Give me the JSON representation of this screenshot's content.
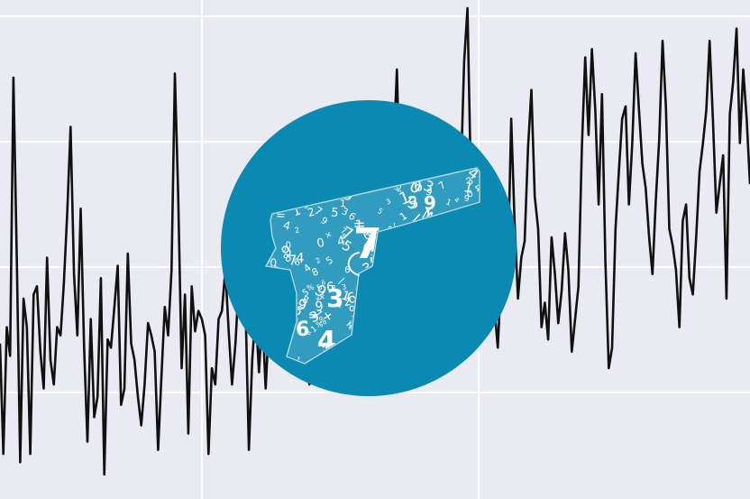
{
  "chart_data": {
    "type": "line",
    "grid": true,
    "series": [
      {
        "values": [
          0.16,
          -0.11,
          0.2,
          0.13,
          0.81,
          0.36,
          -0.13,
          0.27,
          0.2,
          -0.11,
          0.28,
          0.3,
          0.14,
          0.05,
          0.37,
          0.12,
          0.06,
          0.2,
          0.18,
          0.31,
          0.48,
          0.69,
          0.33,
          0.18,
          0.49,
          0.15,
          -0.08,
          0.22,
          -0.02,
          0.03,
          0.32,
          -0.16,
          0.17,
          0.15,
          0.25,
          0.35,
          0.01,
          0.05,
          0.38,
          0.16,
          0.12,
          0.03,
          -0.04,
          0.06,
          0.21,
          0.18,
          0.14,
          -0.1,
          0.08,
          0.25,
          0.18,
          0.34,
          0.82,
          0.52,
          0.1,
          0.28,
          -0.06,
          0.3,
          0.19,
          0.24,
          0.22,
          0.18,
          -0.11,
          0.1,
          0.06,
          0.22,
          0.24,
          0.34,
          0.19,
          0.06,
          0.16,
          0.31,
          0.4,
          0.25,
          -0.1,
          0.12,
          0.24,
          0.09,
          0.23,
          0.05,
          0.22,
          0.46,
          0.31,
          0.43,
          0.28,
          0.36,
          0.44,
          0.28,
          0.2,
          0.32,
          0.42,
          0.4,
          0.06,
          0.21,
          0.35,
          0.12,
          0.58,
          0.38,
          0.37,
          0.24,
          0.11,
          0.29,
          0.32,
          0.1,
          0.18,
          0.36,
          0.26,
          0.2,
          0.16,
          0.41,
          0.7,
          0.28,
          0.18,
          0.24,
          0.12,
          0.29,
          0.4,
          0.62,
          0.83,
          0.51,
          0.25,
          0.3,
          0.45,
          0.33,
          0.3,
          0.42,
          0.37,
          0.61,
          0.42,
          0.21,
          0.42,
          0.21,
          0.34,
          0.3,
          0.54,
          0.5,
          0.44,
          0.56,
          0.85,
          0.98,
          0.56,
          0.62,
          0.54,
          0.38,
          0.41,
          0.6,
          0.42,
          0.25,
          0.15,
          0.32,
          0.52,
          0.34,
          0.71,
          0.46,
          0.27,
          0.37,
          0.41,
          0.64,
          0.78,
          0.52,
          0.44,
          0.2,
          0.26,
          0.17,
          0.42,
          0.33,
          0.21,
          0.29,
          0.43,
          0.34,
          0.14,
          0.22,
          0.3,
          0.64,
          0.86,
          0.67,
          0.88,
          0.73,
          0.5,
          0.77,
          0.36,
          0.1,
          0.15,
          0.44,
          0.58,
          0.71,
          0.74,
          0.5,
          0.65,
          0.87,
          0.73,
          0.6,
          0.54,
          0.42,
          0.33,
          0.51,
          0.66,
          0.9,
          0.74,
          0.44,
          0.4,
          0.34,
          0.2,
          0.46,
          0.5,
          0.32,
          0.28,
          0.42,
          0.58,
          0.65,
          0.73,
          0.9,
          0.7,
          0.48,
          0.55,
          0.62,
          0.27,
          0.72,
          0.8,
          0.93,
          0.65,
          0.83,
          0.71,
          0.55
        ]
      }
    ],
    "ylim": [
      -0.22,
      1.0
    ]
  },
  "logo": {
    "icon": "pistol-made-of-numbers-icon",
    "background_color": "#0a89b3",
    "foreground_color": "#ffffff"
  },
  "colors": {
    "plot_background": "#eaeaf2",
    "grid": "#ffffff",
    "line": "#111111"
  }
}
